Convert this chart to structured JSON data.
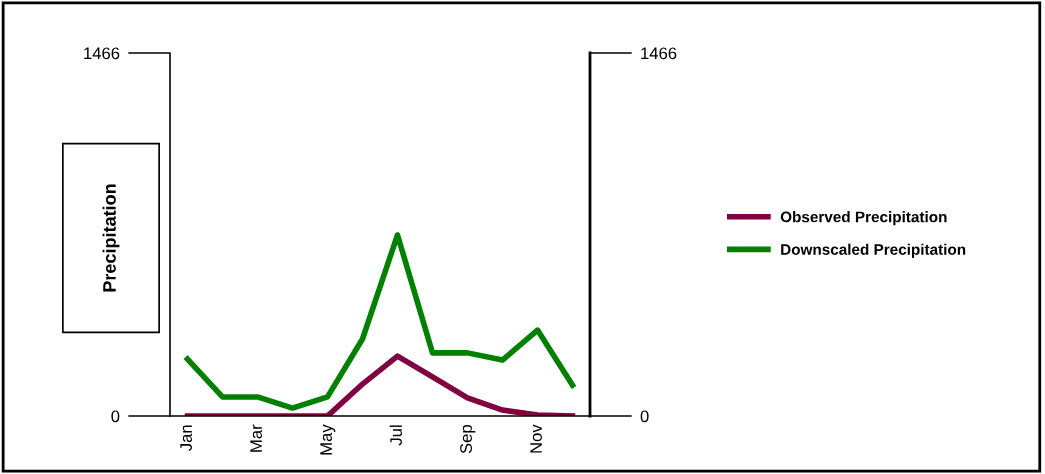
{
  "chart_data": {
    "type": "line",
    "ylabel": "Precipitation",
    "categories": [
      "Jan",
      null,
      "Mar",
      null,
      "May",
      null,
      "Jul",
      null,
      "Sep",
      null,
      "Nov",
      null
    ],
    "series": [
      {
        "name": "Observed Precipitation",
        "color": "#800040",
        "values": [
          0,
          0,
          0,
          0,
          0,
          129,
          242,
          158,
          73,
          24,
          4,
          0
        ]
      },
      {
        "name": "Downscaled Precipitation",
        "color": "#008000",
        "values": [
          230,
          77,
          77,
          32,
          77,
          311,
          731,
          255,
          255,
          226,
          347,
          125
        ]
      }
    ],
    "ylim": [
      0,
      1466
    ],
    "yticks": [
      0,
      1466
    ],
    "y2lim": [
      0,
      1466
    ],
    "y2ticks": [
      0,
      1466
    ],
    "grid": false,
    "legend": "right",
    "marker": "none",
    "line_style": "solid"
  }
}
